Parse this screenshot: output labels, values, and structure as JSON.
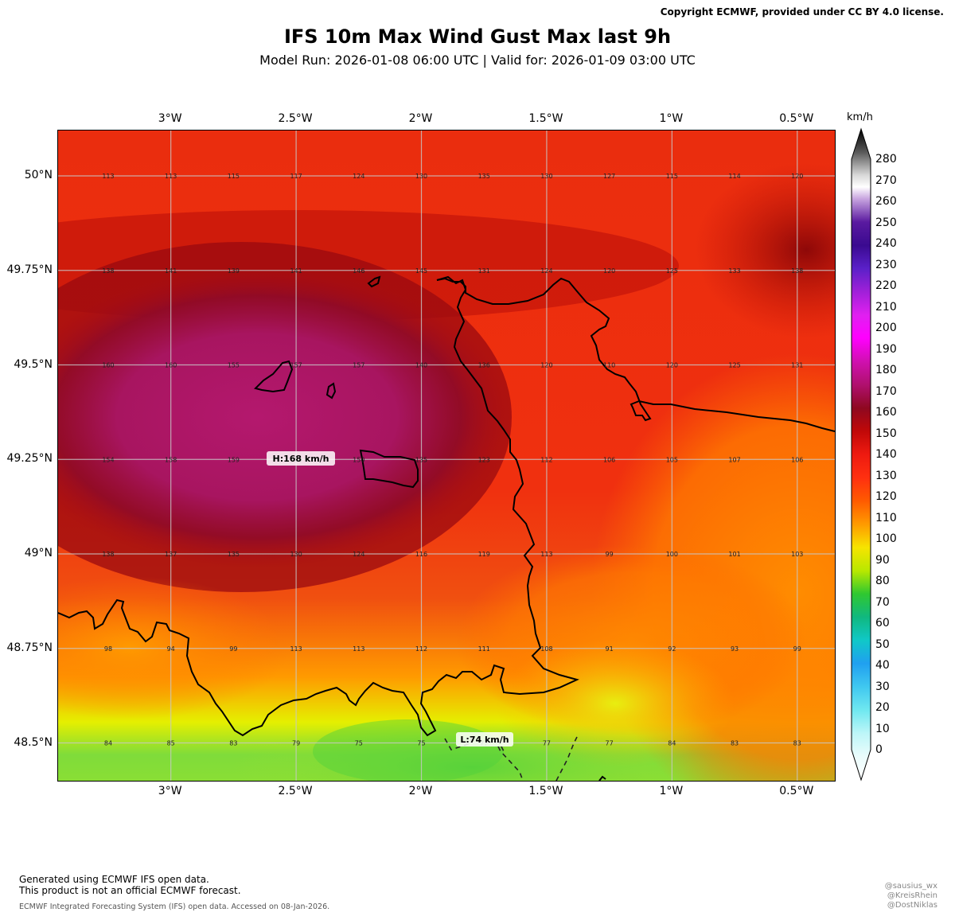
{
  "header": {
    "copyright": "Copyright ECMWF, provided under CC BY 4.0 license.",
    "title": "IFS 10m Max Wind Gust Max last 9h",
    "subtitle": "Model Run: 2026-01-08 06:00 UTC  |  Valid for: 2026-01-09 03:00 UTC"
  },
  "map": {
    "lon_range": [
      -3.45,
      -0.35
    ],
    "lat_range": [
      48.4,
      50.12
    ],
    "lon_ticks": [
      {
        "value": -3.0,
        "label": "3°W"
      },
      {
        "value": -2.5,
        "label": "2.5°W"
      },
      {
        "value": -2.0,
        "label": "2°W"
      },
      {
        "value": -1.5,
        "label": "1.5°W"
      },
      {
        "value": -1.0,
        "label": "1°W"
      },
      {
        "value": -0.5,
        "label": "0.5°W"
      }
    ],
    "lat_ticks": [
      {
        "value": 50.0,
        "label": "50°N"
      },
      {
        "value": 49.75,
        "label": "49.75°N"
      },
      {
        "value": 49.5,
        "label": "49.5°N"
      },
      {
        "value": 49.25,
        "label": "49.25°N"
      },
      {
        "value": 49.0,
        "label": "49°N"
      },
      {
        "value": 48.75,
        "label": "48.75°N"
      },
      {
        "value": 48.5,
        "label": "48.5°N"
      }
    ],
    "grid_lons": [
      -3.25,
      -3.0,
      -2.75,
      -2.5,
      -2.25,
      -2.0,
      -1.75,
      -1.5,
      -1.25,
      -1.0,
      -0.75,
      -0.5
    ],
    "grid_lats": [
      50.0,
      49.75,
      49.5,
      49.25,
      49.0,
      48.75,
      48.5
    ],
    "grid_values": [
      [
        "113",
        "113",
        "115",
        "117",
        "124",
        "130",
        "135",
        "130",
        "127",
        "115",
        "114",
        "120"
      ],
      [
        "138",
        "141",
        "139",
        "141",
        "146",
        "145",
        "131",
        "124",
        "120",
        "125",
        "133",
        "138"
      ],
      [
        "160",
        "160",
        "155",
        "157",
        "157",
        "140",
        "136",
        "120",
        "110",
        "120",
        "125",
        "131"
      ],
      [
        "154",
        "158",
        "159",
        "158",
        "150",
        "135",
        "123",
        "112",
        "106",
        "105",
        "107",
        "106"
      ],
      [
        "138",
        "137",
        "135",
        "130",
        "124",
        "116",
        "119",
        "113",
        "99",
        "100",
        "101",
        "103"
      ],
      [
        "98",
        "94",
        "99",
        "113",
        "113",
        "112",
        "111",
        "108",
        "91",
        "92",
        "93",
        "99"
      ],
      [
        "84",
        "85",
        "83",
        "79",
        "75",
        "75",
        "77",
        "77",
        "77",
        "84",
        "83",
        "83"
      ]
    ],
    "high_label": "H:168 km/h",
    "low_label": "L:74 km/h",
    "colors": {
      "min_green": "#6fd63a",
      "yellow": "#f2f000",
      "orange": "#ff8a00",
      "red": "#f0250e",
      "dark_red": "#9a0808",
      "magenta": "#b3146a"
    }
  },
  "colorbar": {
    "unit": "km/h",
    "ticks": [
      "280",
      "270",
      "260",
      "250",
      "240",
      "230",
      "220",
      "210",
      "200",
      "190",
      "180",
      "170",
      "160",
      "150",
      "140",
      "130",
      "120",
      "110",
      "100",
      "90",
      "80",
      "70",
      "60",
      "50",
      "40",
      "30",
      "20",
      "10",
      "0"
    ]
  },
  "footer": {
    "line1": "Generated using ECMWF IFS open data.",
    "line2": "This product is not an official ECMWF forecast.",
    "line3": "ECMWF Integrated Forecasting System (IFS) open data. Accessed on 08-Jan-2026.",
    "handles": [
      "@sausius_wx",
      "@KreisRhein",
      "@DostNiklas"
    ]
  }
}
